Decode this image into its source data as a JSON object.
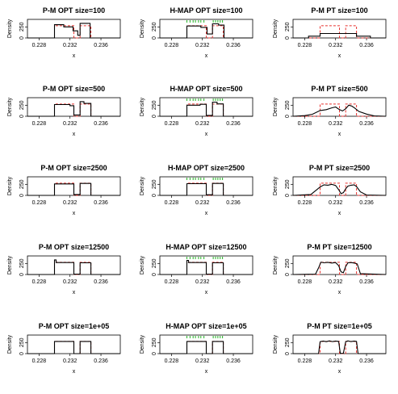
{
  "figure": {
    "rows": [
      {
        "size_label": "100"
      },
      {
        "size_label": "500"
      },
      {
        "size_label": "2500"
      },
      {
        "size_label": "12500"
      },
      {
        "size_label": "1e+05"
      }
    ],
    "columns": [
      {
        "method": "P-M",
        "variant": "OPT",
        "rug": false
      },
      {
        "method": "H-MAP",
        "variant": "OPT",
        "rug": true
      },
      {
        "method": "P-M",
        "variant": "PT",
        "rug": false
      }
    ],
    "colors": {
      "estimate": "#000000",
      "true_density": "#e8322f",
      "rug": "#22b322",
      "frame": "#000000"
    }
  },
  "chart_data": [
    {
      "type": "line",
      "title": "P-M  OPT size=100",
      "xlabel": "x",
      "ylabel": "Density",
      "xlim": [
        0.2265,
        0.2385
      ],
      "ylim": [
        0,
        420
      ],
      "xticks": [
        0.228,
        0.232,
        0.236
      ],
      "yticks": [
        0,
        250
      ],
      "series": [
        {
          "x": [
            0.2265,
            0.23,
            0.23,
            0.2312,
            0.2312,
            0.2324,
            0.2324,
            0.233,
            0.233,
            0.2333,
            0.2333,
            0.2346,
            0.2346,
            0.2385
          ],
          "y": [
            0,
            0,
            300,
            300,
            250,
            250,
            160,
            160,
            60,
            60,
            330,
            330,
            0,
            0
          ]
        }
      ]
    },
    {
      "type": "line",
      "title": "H-MAP  OPT size=100",
      "xlabel": "x",
      "ylabel": "Density",
      "xlim": [
        0.2265,
        0.2385
      ],
      "ylim": [
        0,
        420
      ],
      "xticks": [
        0.228,
        0.232,
        0.236
      ],
      "yticks": [
        0,
        250
      ],
      "series": [
        {
          "x": [
            0.2265,
            0.23,
            0.23,
            0.2318,
            0.2318,
            0.2326,
            0.2326,
            0.2333,
            0.2333,
            0.2341,
            0.2341,
            0.2348,
            0.2348,
            0.2385
          ],
          "y": [
            0,
            0,
            270,
            270,
            240,
            240,
            90,
            90,
            320,
            320,
            290,
            290,
            0,
            0
          ]
        }
      ]
    },
    {
      "type": "line",
      "title": "P-M  PT size=100",
      "xlabel": "x",
      "ylabel": "Density",
      "xlim": [
        0.2265,
        0.2385
      ],
      "ylim": [
        0,
        420
      ],
      "xticks": [
        0.228,
        0.232,
        0.236
      ],
      "yticks": [
        0,
        250
      ],
      "series": [
        {
          "x": [
            0.2265,
            0.2285,
            0.2285,
            0.23,
            0.23,
            0.2347,
            0.2347,
            0.2365,
            0.2365,
            0.2385
          ],
          "y": [
            0,
            0,
            40,
            40,
            100,
            100,
            40,
            40,
            0,
            0
          ]
        }
      ]
    },
    {
      "type": "line",
      "title": "P-M  OPT size=500",
      "xlabel": "x",
      "ylabel": "Density",
      "xlim": [
        0.2265,
        0.2385
      ],
      "ylim": [
        0,
        420
      ],
      "xticks": [
        0.228,
        0.232,
        0.236
      ],
      "yticks": [
        0,
        250
      ],
      "series": [
        {
          "x": [
            0.2265,
            0.23,
            0.23,
            0.232,
            0.232,
            0.2325,
            0.2325,
            0.2333,
            0.2333,
            0.2338,
            0.2338,
            0.2347,
            0.2347,
            0.2385
          ],
          "y": [
            0,
            0,
            265,
            265,
            240,
            240,
            30,
            30,
            330,
            330,
            290,
            290,
            0,
            0
          ]
        }
      ]
    },
    {
      "type": "line",
      "title": "H-MAP  OPT size=500",
      "xlabel": "x",
      "ylabel": "Density",
      "xlim": [
        0.2265,
        0.2385
      ],
      "ylim": [
        0,
        420
      ],
      "xticks": [
        0.228,
        0.232,
        0.236
      ],
      "yticks": [
        0,
        250
      ],
      "series": [
        {
          "x": [
            0.2265,
            0.23,
            0.23,
            0.2317,
            0.2317,
            0.2325,
            0.2325,
            0.2333,
            0.2333,
            0.2339,
            0.2339,
            0.2347,
            0.2347,
            0.2385
          ],
          "y": [
            0,
            0,
            250,
            250,
            270,
            270,
            20,
            20,
            320,
            320,
            280,
            280,
            0,
            0
          ]
        }
      ]
    },
    {
      "type": "line",
      "title": "P-M  PT size=500",
      "xlabel": "x",
      "ylabel": "Density",
      "xlim": [
        0.2265,
        0.2385
      ],
      "ylim": [
        0,
        420
      ],
      "xticks": [
        0.228,
        0.232,
        0.236
      ],
      "yticks": [
        0,
        250
      ],
      "series": [
        {
          "x": [
            0.2265,
            0.228,
            0.229,
            0.23,
            0.2308,
            0.2315,
            0.232,
            0.2325,
            0.2329,
            0.2333,
            0.2337,
            0.2341,
            0.2345,
            0.235,
            0.236,
            0.237,
            0.2385
          ],
          "y": [
            0,
            15,
            45,
            130,
            150,
            190,
            210,
            150,
            120,
            170,
            250,
            230,
            180,
            110,
            50,
            10,
            0
          ]
        }
      ]
    },
    {
      "type": "line",
      "title": "P-M  OPT size=2500",
      "xlabel": "x",
      "ylabel": "Density",
      "xlim": [
        0.2265,
        0.2385
      ],
      "ylim": [
        0,
        420
      ],
      "xticks": [
        0.228,
        0.232,
        0.236
      ],
      "yticks": [
        0,
        250
      ],
      "series": [
        {
          "x": [
            0.2265,
            0.23,
            0.23,
            0.2325,
            0.2325,
            0.2333,
            0.2333,
            0.2347,
            0.2347,
            0.2385
          ],
          "y": [
            0,
            0,
            260,
            260,
            20,
            20,
            270,
            270,
            0,
            0
          ]
        }
      ]
    },
    {
      "type": "line",
      "title": "H-MAP  OPT size=2500",
      "xlabel": "x",
      "ylabel": "Density",
      "xlim": [
        0.2265,
        0.2385
      ],
      "ylim": [
        0,
        420
      ],
      "xticks": [
        0.228,
        0.232,
        0.236
      ],
      "yticks": [
        0,
        250
      ],
      "series": [
        {
          "x": [
            0.2265,
            0.23,
            0.23,
            0.2325,
            0.2325,
            0.2333,
            0.2333,
            0.2347,
            0.2347,
            0.2385
          ],
          "y": [
            0,
            0,
            265,
            265,
            15,
            15,
            270,
            270,
            0,
            0
          ]
        }
      ]
    },
    {
      "type": "line",
      "title": "P-M  PT size=2500",
      "xlabel": "x",
      "ylabel": "Density",
      "xlim": [
        0.2265,
        0.2385
      ],
      "ylim": [
        0,
        420
      ],
      "xticks": [
        0.228,
        0.232,
        0.236
      ],
      "yticks": [
        0,
        250
      ],
      "series": [
        {
          "x": [
            0.2265,
            0.2288,
            0.2295,
            0.23,
            0.2305,
            0.231,
            0.2315,
            0.232,
            0.2324,
            0.2327,
            0.233,
            0.2333,
            0.2336,
            0.234,
            0.2344,
            0.2347,
            0.2352,
            0.236,
            0.2385
          ],
          "y": [
            0,
            20,
            120,
            190,
            240,
            230,
            250,
            225,
            130,
            40,
            60,
            150,
            210,
            230,
            240,
            200,
            80,
            10,
            0
          ]
        }
      ]
    },
    {
      "type": "line",
      "title": "P-M  OPT size=12500",
      "xlabel": "x",
      "ylabel": "Density",
      "xlim": [
        0.2265,
        0.2385
      ],
      "ylim": [
        0,
        420
      ],
      "xticks": [
        0.228,
        0.232,
        0.236
      ],
      "yticks": [
        0,
        250
      ],
      "series": [
        {
          "x": [
            0.2265,
            0.23,
            0.23,
            0.2302,
            0.2302,
            0.2325,
            0.2325,
            0.2333,
            0.2333,
            0.2347,
            0.2347,
            0.2385
          ],
          "y": [
            0,
            0,
            330,
            330,
            270,
            270,
            10,
            10,
            265,
            265,
            0,
            0
          ]
        }
      ]
    },
    {
      "type": "line",
      "title": "H-MAP  OPT size=12500",
      "xlabel": "x",
      "ylabel": "Density",
      "xlim": [
        0.2265,
        0.2385
      ],
      "ylim": [
        0,
        420
      ],
      "xticks": [
        0.228,
        0.232,
        0.236
      ],
      "yticks": [
        0,
        250
      ],
      "series": [
        {
          "x": [
            0.2265,
            0.23,
            0.23,
            0.2302,
            0.2302,
            0.2325,
            0.2325,
            0.2333,
            0.2333,
            0.2347,
            0.2347,
            0.2385
          ],
          "y": [
            0,
            0,
            320,
            320,
            270,
            270,
            10,
            10,
            265,
            265,
            0,
            0
          ]
        }
      ]
    },
    {
      "type": "line",
      "title": "P-M  PT size=12500",
      "xlabel": "x",
      "ylabel": "Density",
      "xlim": [
        0.2265,
        0.2385
      ],
      "ylim": [
        0,
        420
      ],
      "xticks": [
        0.228,
        0.232,
        0.236
      ],
      "yticks": [
        0,
        250
      ],
      "series": [
        {
          "x": [
            0.2265,
            0.2294,
            0.2298,
            0.2301,
            0.2305,
            0.231,
            0.2315,
            0.232,
            0.2324,
            0.2327,
            0.233,
            0.2333,
            0.2336,
            0.234,
            0.2344,
            0.2348,
            0.2352,
            0.2385
          ],
          "y": [
            0,
            10,
            150,
            280,
            265,
            275,
            260,
            270,
            200,
            60,
            40,
            180,
            265,
            270,
            260,
            240,
            20,
            0
          ]
        }
      ]
    },
    {
      "type": "line",
      "title": "P-M  OPT size=1e+05",
      "xlabel": "x",
      "ylabel": "Density",
      "xlim": [
        0.2265,
        0.2385
      ],
      "ylim": [
        0,
        420
      ],
      "xticks": [
        0.228,
        0.232,
        0.236
      ],
      "yticks": [
        0,
        250
      ],
      "series": [
        {
          "x": [
            0.2265,
            0.23,
            0.23,
            0.2325,
            0.2325,
            0.2333,
            0.2333,
            0.2347,
            0.2347,
            0.2385
          ],
          "y": [
            0,
            0,
            275,
            275,
            0,
            0,
            275,
            275,
            0,
            0
          ]
        }
      ]
    },
    {
      "type": "line",
      "title": "H-MAP  OPT size=1e+05",
      "xlabel": "x",
      "ylabel": "Density",
      "xlim": [
        0.2265,
        0.2385
      ],
      "ylim": [
        0,
        420
      ],
      "xticks": [
        0.228,
        0.232,
        0.236
      ],
      "yticks": [
        0,
        250
      ],
      "series": [
        {
          "x": [
            0.2265,
            0.23,
            0.23,
            0.2325,
            0.2325,
            0.2333,
            0.2333,
            0.2347,
            0.2347,
            0.2385
          ],
          "y": [
            0,
            0,
            275,
            275,
            0,
            0,
            275,
            275,
            0,
            0
          ]
        }
      ]
    },
    {
      "type": "line",
      "title": "P-M  PT size=1e+05",
      "xlabel": "x",
      "ylabel": "Density",
      "xlim": [
        0.2265,
        0.2385
      ],
      "ylim": [
        0,
        420
      ],
      "xticks": [
        0.228,
        0.232,
        0.236
      ],
      "yticks": [
        0,
        250
      ],
      "series": [
        {
          "x": [
            0.2265,
            0.2298,
            0.23,
            0.2304,
            0.2308,
            0.2312,
            0.2316,
            0.232,
            0.2324,
            0.2326,
            0.233,
            0.2333,
            0.2336,
            0.234,
            0.2344,
            0.2347,
            0.2349,
            0.2385
          ],
          "y": [
            0,
            0,
            270,
            285,
            270,
            288,
            272,
            285,
            275,
            10,
            5,
            270,
            288,
            272,
            285,
            275,
            0,
            0
          ]
        }
      ]
    }
  ],
  "reference": {
    "true_density": {
      "x": [
        0.2265,
        0.23,
        0.23,
        0.2325,
        0.2325,
        0.2333,
        0.2333,
        0.2347,
        0.2347,
        0.2385
      ],
      "y": [
        0,
        0,
        275,
        275,
        0,
        0,
        275,
        275,
        0,
        0
      ]
    },
    "rug_x": [
      0.23,
      0.2304,
      0.2308,
      0.2311,
      0.2315,
      0.2318,
      0.2322,
      0.2334,
      0.2337,
      0.234,
      0.2343,
      0.2346
    ]
  }
}
